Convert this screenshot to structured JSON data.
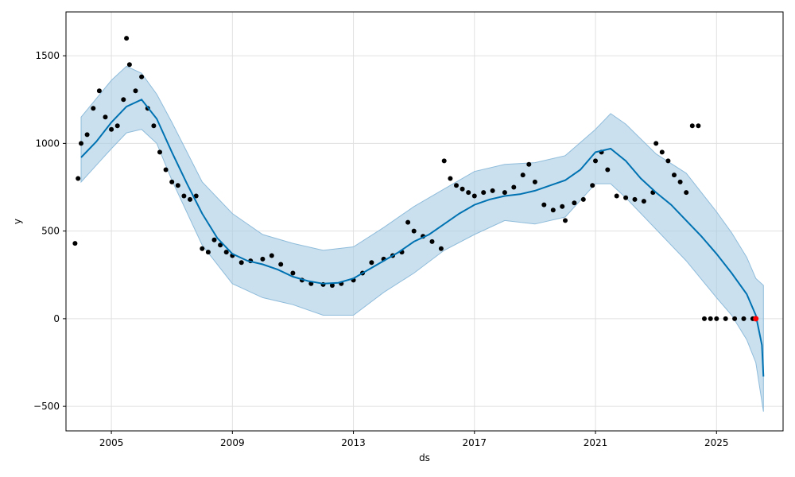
{
  "chart_data": {
    "type": "line",
    "title": "",
    "xlabel": "ds",
    "ylabel": "y",
    "xlim": [
      2003.5,
      2027.2
    ],
    "ylim": [
      -640,
      1750
    ],
    "grid": true,
    "x_tick_labels": [
      "2005",
      "2009",
      "2013",
      "2017",
      "2021",
      "2025"
    ],
    "y_tick_labels": [
      "−500",
      "0",
      "500",
      "1000",
      "1500"
    ],
    "y_tick_values": [
      -500,
      0,
      500,
      1000,
      1500
    ],
    "colors": {
      "forecast_line": "#0072B2",
      "uncertainty_band": "#A6CBE3",
      "observed_points": "#000000",
      "recent_points": "#FF0000",
      "grid": "#E0E0E0"
    },
    "series": [
      {
        "key": "forecast",
        "x": [
          2004.0,
          2004.5,
          2005.0,
          2005.5,
          2006.0,
          2006.5,
          2007.0,
          2007.5,
          2008.0,
          2008.5,
          2009.0,
          2009.5,
          2010.0,
          2010.5,
          2011.0,
          2011.5,
          2012.0,
          2012.5,
          2013.0,
          2013.5,
          2014.0,
          2014.5,
          2015.0,
          2015.5,
          2016.0,
          2016.5,
          2017.0,
          2017.5,
          2018.0,
          2018.5,
          2019.0,
          2019.5,
          2020.0,
          2020.5,
          2021.0,
          2021.5,
          2022.0,
          2022.5,
          2023.0,
          2023.5,
          2024.0,
          2024.5,
          2025.0,
          2025.5,
          2026.0,
          2026.3,
          2026.5,
          2026.55
        ],
        "y": [
          920,
          1010,
          1120,
          1210,
          1250,
          1140,
          950,
          770,
          600,
          460,
          370,
          330,
          310,
          280,
          240,
          215,
          200,
          205,
          230,
          280,
          330,
          380,
          440,
          480,
          540,
          600,
          650,
          680,
          700,
          710,
          730,
          760,
          790,
          850,
          950,
          970,
          900,
          800,
          720,
          650,
          560,
          470,
          370,
          260,
          140,
          20,
          -150,
          -330
        ]
      },
      {
        "key": "uncertainty_upper",
        "x": [
          2004.0,
          2005.0,
          2005.5,
          2006.0,
          2006.5,
          2007.0,
          2008.0,
          2009.0,
          2010.0,
          2011.0,
          2012.0,
          2013.0,
          2014.0,
          2015.0,
          2016.0,
          2017.0,
          2018.0,
          2019.0,
          2020.0,
          2021.0,
          2021.5,
          2022.0,
          2023.0,
          2024.0,
          2025.0,
          2025.5,
          2026.0,
          2026.3,
          2026.55
        ],
        "y": [
          1150,
          1360,
          1440,
          1400,
          1280,
          1120,
          780,
          600,
          480,
          430,
          390,
          410,
          520,
          640,
          740,
          840,
          880,
          890,
          930,
          1080,
          1170,
          1110,
          940,
          830,
          610,
          490,
          350,
          230,
          190
        ]
      },
      {
        "key": "uncertainty_lower",
        "x": [
          2004.0,
          2005.0,
          2005.5,
          2006.0,
          2006.5,
          2007.0,
          2008.0,
          2009.0,
          2010.0,
          2011.0,
          2012.0,
          2013.0,
          2014.0,
          2015.0,
          2016.0,
          2017.0,
          2018.0,
          2019.0,
          2020.0,
          2021.0,
          2021.5,
          2022.0,
          2023.0,
          2024.0,
          2025.0,
          2025.5,
          2026.0,
          2026.3,
          2026.55
        ],
        "y": [
          780,
          970,
          1060,
          1080,
          1000,
          790,
          420,
          200,
          120,
          80,
          20,
          20,
          150,
          260,
          390,
          480,
          560,
          540,
          580,
          770,
          770,
          690,
          510,
          330,
          120,
          20,
          -120,
          -250,
          -530
        ]
      },
      {
        "key": "observed",
        "x": [
          2003.8,
          2003.9,
          2004.0,
          2004.2,
          2004.4,
          2004.6,
          2004.8,
          2005.0,
          2005.2,
          2005.4,
          2005.5,
          2005.6,
          2005.8,
          2006.0,
          2006.2,
          2006.4,
          2006.6,
          2006.8,
          2007.0,
          2007.2,
          2007.4,
          2007.6,
          2007.8,
          2008.0,
          2008.2,
          2008.4,
          2008.6,
          2008.8,
          2009.0,
          2009.3,
          2009.6,
          2010.0,
          2010.3,
          2010.6,
          2011.0,
          2011.3,
          2011.6,
          2012.0,
          2012.3,
          2012.6,
          2013.0,
          2013.3,
          2013.6,
          2014.0,
          2014.3,
          2014.6,
          2014.8,
          2015.0,
          2015.3,
          2015.6,
          2015.9,
          2016.0,
          2016.2,
          2016.4,
          2016.6,
          2016.8,
          2017.0,
          2017.3,
          2017.6,
          2018.0,
          2018.3,
          2018.6,
          2018.8,
          2019.0,
          2019.3,
          2019.6,
          2019.9,
          2020.0,
          2020.3,
          2020.6,
          2020.9,
          2021.0,
          2021.2,
          2021.4,
          2021.7,
          2022.0,
          2022.3,
          2022.6,
          2022.9,
          2023.0,
          2023.2,
          2023.4,
          2023.6,
          2023.8,
          2024.0,
          2024.2,
          2024.4,
          2024.6,
          2024.8,
          2025.0,
          2025.3,
          2025.6,
          2025.9,
          2026.2
        ],
        "y": [
          430,
          800,
          1000,
          1050,
          1200,
          1300,
          1150,
          1080,
          1100,
          1250,
          1600,
          1450,
          1300,
          1380,
          1200,
          1100,
          950,
          850,
          780,
          760,
          700,
          680,
          700,
          400,
          380,
          450,
          420,
          380,
          360,
          320,
          330,
          340,
          360,
          310,
          260,
          220,
          200,
          195,
          190,
          200,
          220,
          260,
          320,
          340,
          360,
          380,
          550,
          500,
          470,
          440,
          400,
          900,
          800,
          760,
          740,
          720,
          700,
          720,
          730,
          720,
          750,
          820,
          880,
          780,
          650,
          620,
          640,
          560,
          660,
          680,
          760,
          900,
          950,
          850,
          700,
          690,
          680,
          670,
          720,
          1000,
          950,
          900,
          820,
          780,
          720,
          1100,
          1100,
          0,
          0,
          0,
          0,
          0,
          0,
          0
        ]
      },
      {
        "key": "recent",
        "x": [
          2026.3
        ],
        "y": [
          0
        ]
      }
    ]
  }
}
